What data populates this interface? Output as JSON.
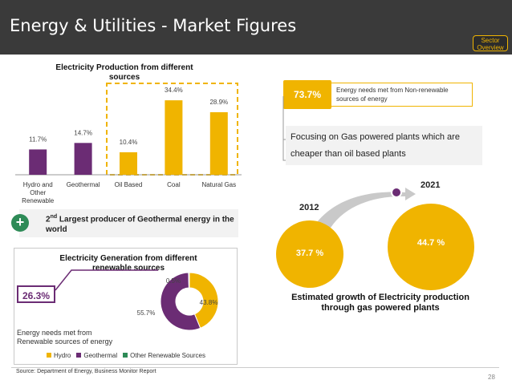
{
  "header": {
    "title": "Energy & Utilities - Market Figures",
    "sector_button": "Sector Overview"
  },
  "colors": {
    "purple": "#6b2c74",
    "yellow": "#f0b400",
    "green": "#2e8b57",
    "dark": "#3a3a3a"
  },
  "chart_data": [
    {
      "type": "bar",
      "title": "Electricity Production from different sources",
      "categories": [
        "Hydro and Other Renewable",
        "Geothermal",
        "Oil Based",
        "Coal",
        "Natural Gas"
      ],
      "values": [
        11.7,
        14.7,
        10.4,
        34.4,
        28.9
      ],
      "value_labels": [
        "11.7%",
        "14.7%",
        "10.4%",
        "34.4%",
        "28.9%"
      ],
      "bar_colors": [
        "#6b2c74",
        "#6b2c74",
        "#f0b400",
        "#f0b400",
        "#f0b400"
      ],
      "highlight": "dashed box around Oil Based, Coal, Natural Gas",
      "ylim": [
        0,
        40
      ]
    },
    {
      "type": "pie",
      "style": "donut",
      "title": "Electricity Generation from different renewable sources",
      "series": [
        {
          "name": "Hydro",
          "value": 43.8,
          "label": "43.8%",
          "color": "#f0b400"
        },
        {
          "name": "Geothermal",
          "value": 55.7,
          "label": "55.7%",
          "color": "#6b2c74"
        },
        {
          "name": "Other Renewable Sources",
          "value": 0.5,
          "label": "0.5%",
          "color": "#2e8b57"
        }
      ],
      "legend_position": "bottom"
    },
    {
      "type": "bubble",
      "title": "Estimated growth of Electricity production through gas powered plants",
      "points": [
        {
          "year": "2012",
          "value": 37.7,
          "label": "37.7 %"
        },
        {
          "year": "2021",
          "value": 44.7,
          "label": "44.7 %"
        }
      ]
    }
  ],
  "geothermal_note": {
    "sup": "nd",
    "number": "2",
    "text": "Largest producer of Geothermal energy in the world",
    "plus": "+"
  },
  "renewable_badge": {
    "value": "26.3%",
    "caption": "Energy needs met from Renewable sources of energy"
  },
  "nonrenewable": {
    "value": "73.7%",
    "caption": "Energy needs met from Non-renewable sources of energy"
  },
  "gas_note": "Focusing on Gas powered plants which are cheaper than oil based plants",
  "source": "Source: Department of Energy, Business Monitor Report",
  "page_number": "28"
}
